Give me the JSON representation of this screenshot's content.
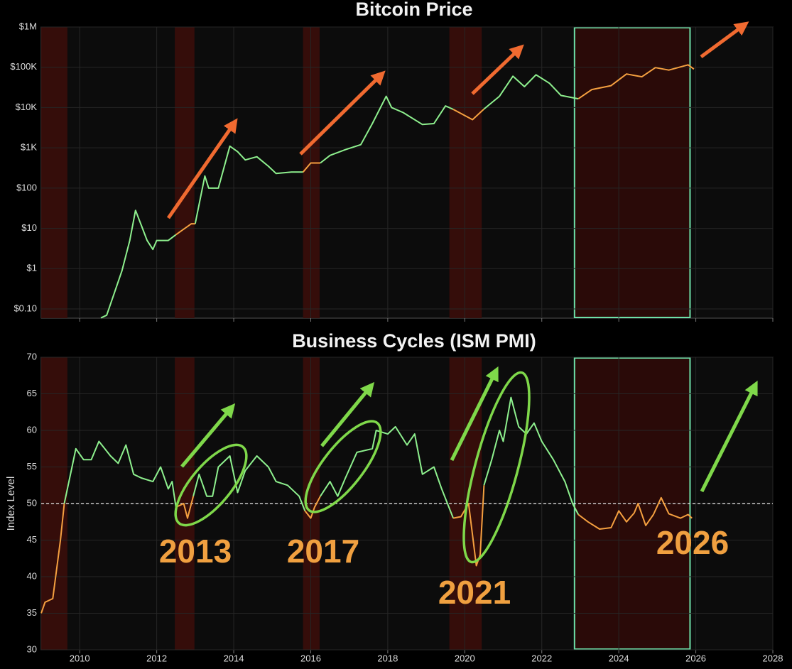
{
  "chart_data": [
    {
      "type": "line",
      "title": "Bitcoin Price",
      "log_scale": true,
      "xlim": [
        2009,
        2028
      ],
      "ylim": [
        0.059,
        1000000
      ],
      "yticks": [
        {
          "value": 0.1,
          "label": "$0.10"
        },
        {
          "value": 1,
          "label": "$1"
        },
        {
          "value": 10,
          "label": "$10"
        },
        {
          "value": 100,
          "label": "$100"
        },
        {
          "value": 1000,
          "label": "$1K"
        },
        {
          "value": 10000,
          "label": "$10K"
        },
        {
          "value": 100000,
          "label": "$100K"
        },
        {
          "value": 1000000,
          "label": "$1M"
        }
      ],
      "grid": true,
      "shaded_regions": [
        [
          2009,
          2009.68
        ],
        [
          2012.47,
          2012.98
        ],
        [
          2015.8,
          2016.23
        ],
        [
          2019.6,
          2020.44
        ]
      ],
      "highlight": [
        2022.85,
        2025.85
      ],
      "x": [
        2010.55,
        2010.7,
        2010.9,
        2011.1,
        2011.3,
        2011.45,
        2011.6,
        2011.75,
        2011.9,
        2012.0,
        2012.3,
        2012.5,
        2012.9,
        2013.0,
        2013.25,
        2013.35,
        2013.6,
        2013.9,
        2014.1,
        2014.3,
        2014.6,
        2014.9,
        2015.1,
        2015.5,
        2015.8,
        2016.0,
        2016.25,
        2016.5,
        2016.9,
        2017.3,
        2017.6,
        2017.96,
        2018.1,
        2018.4,
        2018.9,
        2019.2,
        2019.5,
        2019.7,
        2020.2,
        2020.5,
        2020.9,
        2021.25,
        2021.55,
        2021.85,
        2022.2,
        2022.5,
        2022.95,
        2023.3,
        2023.8,
        2024.2,
        2024.6,
        2024.95,
        2025.3,
        2025.8,
        2025.95
      ],
      "series": [
        {
          "color": "#8ef08e",
          "values": [
            0.06,
            0.07,
            0.25,
            0.9,
            5,
            28,
            12,
            5,
            3,
            5,
            5,
            7,
            null,
            13,
            200,
            100,
            100,
            1100,
            800,
            500,
            600,
            350,
            230,
            250,
            250,
            null,
            420,
            650,
            900,
            1200,
            4000,
            19000,
            10000,
            7500,
            3800,
            4000,
            11000,
            9000,
            null,
            9200,
            19000,
            60000,
            33000,
            65000,
            40000,
            20000,
            16500,
            null,
            null,
            null,
            null,
            null,
            null,
            null,
            null
          ]
        },
        {
          "color": "#f5a040",
          "values": [
            null,
            null,
            null,
            null,
            null,
            null,
            null,
            null,
            null,
            null,
            null,
            7,
            13,
            13,
            null,
            null,
            null,
            null,
            null,
            null,
            null,
            null,
            null,
            null,
            250,
            420,
            420,
            null,
            null,
            null,
            null,
            null,
            null,
            null,
            null,
            null,
            null,
            9000,
            5000,
            9200,
            null,
            null,
            null,
            null,
            null,
            null,
            16500,
            28000,
            35000,
            68000,
            58000,
            98000,
            85000,
            115000,
            90000
          ]
        }
      ]
    },
    {
      "type": "line",
      "title": "Business Cycles (ISM PMI)",
      "y_label": "Index Level",
      "xlim": [
        2009,
        2028
      ],
      "ylim": [
        30,
        70
      ],
      "xticks": [
        2010,
        2012,
        2014,
        2016,
        2018,
        2020,
        2022,
        2024,
        2026,
        2028
      ],
      "yticks": [
        30,
        35,
        40,
        45,
        50,
        55,
        60,
        65,
        70
      ],
      "grid": true,
      "hline": 50,
      "shaded_regions": [
        [
          2009,
          2009.68
        ],
        [
          2012.47,
          2012.98
        ],
        [
          2015.8,
          2016.23
        ],
        [
          2019.6,
          2020.44
        ]
      ],
      "highlight": [
        2022.85,
        2025.85
      ],
      "annotations": [
        "2013",
        "2017",
        "2021",
        "2026"
      ],
      "x": [
        2009.0,
        2009.1,
        2009.3,
        2009.5,
        2009.6,
        2009.8,
        2009.9,
        2010.1,
        2010.3,
        2010.5,
        2010.8,
        2011.0,
        2011.2,
        2011.4,
        2011.6,
        2011.9,
        2012.1,
        2012.3,
        2012.4,
        2012.5,
        2012.7,
        2012.8,
        2012.95,
        2013.1,
        2013.3,
        2013.45,
        2013.6,
        2013.9,
        2014.1,
        2014.3,
        2014.6,
        2014.9,
        2015.1,
        2015.4,
        2015.7,
        2015.85,
        2016.0,
        2016.1,
        2016.25,
        2016.5,
        2016.7,
        2016.9,
        2017.2,
        2017.6,
        2017.7,
        2018.0,
        2018.2,
        2018.5,
        2018.7,
        2018.9,
        2019.2,
        2019.4,
        2019.7,
        2019.9,
        2020.1,
        2020.3,
        2020.4,
        2020.5,
        2020.7,
        2020.9,
        2021.0,
        2021.2,
        2021.4,
        2021.6,
        2021.8,
        2022.0,
        2022.3,
        2022.6,
        2022.8,
        2022.95,
        2023.2,
        2023.5,
        2023.8,
        2024.0,
        2024.2,
        2024.4,
        2024.5,
        2024.7,
        2024.9,
        2025.1,
        2025.3,
        2025.6,
        2025.8,
        2025.9
      ],
      "series": [
        {
          "color": "#8ef08e",
          "values": [
            null,
            null,
            null,
            null,
            50,
            55,
            57.5,
            56,
            56,
            58.5,
            56.5,
            55.5,
            58,
            54,
            53.5,
            53,
            55,
            52,
            53,
            49.5,
            null,
            null,
            51,
            54,
            51,
            51,
            55,
            56.5,
            51.5,
            54.5,
            56.5,
            55,
            53,
            52.5,
            51,
            49,
            null,
            null,
            51,
            53,
            51,
            53.5,
            57,
            57.5,
            60,
            59.5,
            60.5,
            58,
            59.5,
            54,
            55,
            52,
            48,
            null,
            null,
            null,
            null,
            52.5,
            56,
            60,
            58.5,
            64.5,
            60.5,
            59.5,
            61,
            58.5,
            56,
            53,
            50,
            48.5,
            null,
            null,
            null,
            null,
            null,
            null,
            null,
            null,
            null,
            null,
            null,
            null,
            null,
            null
          ]
        },
        {
          "color": "#f5a040",
          "values": [
            35,
            36.5,
            37,
            45,
            50,
            null,
            null,
            null,
            null,
            null,
            null,
            null,
            null,
            null,
            null,
            null,
            null,
            null,
            null,
            49.5,
            50,
            48,
            51,
            null,
            null,
            null,
            null,
            null,
            null,
            null,
            null,
            null,
            null,
            null,
            null,
            49,
            48,
            49.5,
            51,
            null,
            null,
            null,
            null,
            null,
            null,
            null,
            null,
            null,
            null,
            null,
            null,
            null,
            48,
            48.2,
            50,
            41.5,
            43,
            52.5,
            null,
            null,
            null,
            null,
            null,
            null,
            null,
            null,
            null,
            null,
            null,
            48.5,
            47.5,
            46.5,
            46.7,
            49,
            47.5,
            48.7,
            50,
            47,
            48.5,
            50.8,
            48.6,
            48,
            48.5,
            48
          ]
        }
      ]
    }
  ]
}
